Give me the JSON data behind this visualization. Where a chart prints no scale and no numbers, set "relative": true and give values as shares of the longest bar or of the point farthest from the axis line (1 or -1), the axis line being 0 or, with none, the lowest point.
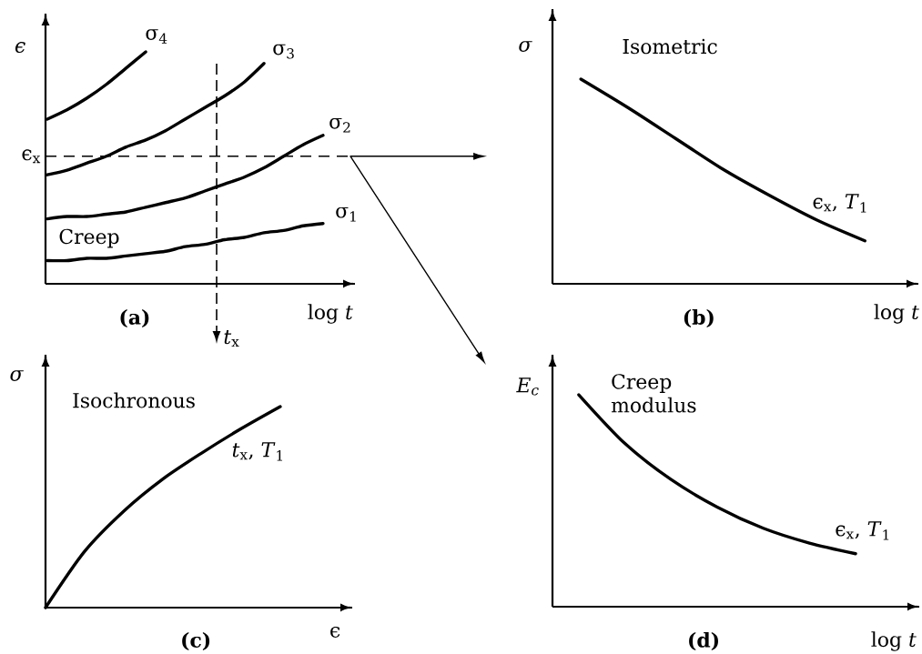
{
  "chart_data": [
    {
      "type": "line",
      "title": "(a)",
      "xlabel": "log *t*",
      "ylabel": "ϵ",
      "relative": true,
      "marker": "none",
      "line_style": "solid",
      "categories": [
        null,
        null,
        null,
        null,
        null,
        null,
        null,
        null,
        null,
        null,
        null,
        null,
        null,
        null,
        null
      ],
      "series": [
        {
          "name": "σ$_{4}$",
          "color": "#000000",
          "values": [
            0.71,
            0.75,
            0.8,
            0.86,
            0.93,
            1,
            null,
            null,
            null,
            null,
            null,
            null,
            null,
            null,
            null
          ]
        },
        {
          "name": "σ$_{3}$",
          "color": "#000000",
          "values": [
            0.47,
            0.49,
            0.52,
            0.55,
            0.59,
            0.62,
            0.66,
            0.71,
            0.76,
            0.81,
            0.87,
            0.95,
            null,
            null,
            null
          ]
        },
        {
          "name": "σ$_{2}$",
          "color": "#000000",
          "values": [
            0.28,
            0.29,
            0.29,
            0.3,
            0.31,
            0.33,
            0.35,
            0.37,
            0.4,
            0.43,
            0.46,
            0.5,
            0.55,
            0.6,
            0.64
          ]
        },
        {
          "name": "σ$_{1}$",
          "color": "#000000",
          "values": [
            0.1,
            0.1,
            0.11,
            0.11,
            0.12,
            0.13,
            0.14,
            0.16,
            0.17,
            0.19,
            0.2,
            0.22,
            0.23,
            0.25,
            0.26
          ]
        }
      ],
      "annotations": [
        "Creep",
        "*t*$_{x}$"
      ],
      "ref_lines": [
        {
          "axis": "y",
          "value": 0.55,
          "label": "ϵ$_{x}$",
          "line_style": "dashed"
        }
      ]
    },
    {
      "type": "line",
      "title": "(b)",
      "xlabel": "log *t*",
      "ylabel": "σ",
      "relative": true,
      "marker": "none",
      "line_style": "solid",
      "categories": [
        null,
        null,
        null,
        null,
        null,
        null,
        null
      ],
      "series": [
        {
          "name": "ϵ$_{x}$, *T*$_{1}$",
          "color": "#000000",
          "values": [
            1,
            0.86,
            0.71,
            0.56,
            0.43,
            0.31,
            0.21
          ]
        }
      ],
      "annotations": [
        "Isometric"
      ]
    },
    {
      "type": "line",
      "title": "(c)",
      "xlabel": "ϵ",
      "ylabel": "σ",
      "relative": true,
      "marker": "none",
      "line_style": "solid",
      "categories": [
        null,
        null,
        null,
        null,
        null,
        null,
        null
      ],
      "series": [
        {
          "name": "*t*$_{x}$, *T*$_{1}$",
          "color": "#000000",
          "values": [
            0,
            0.28,
            0.48,
            0.64,
            0.77,
            0.89,
            1
          ]
        }
      ],
      "annotations": [
        "Isochronous"
      ]
    },
    {
      "type": "line",
      "title": "(d)",
      "xlabel": "log *t*",
      "ylabel": "E$_{c}$",
      "relative": true,
      "marker": "none",
      "line_style": "solid",
      "categories": [
        null,
        null,
        null,
        null,
        null,
        null,
        null
      ],
      "series": [
        {
          "name": "ϵ$_{x}$, *T*$_{1}$",
          "color": "#000000",
          "values": [
            1,
            0.77,
            0.6,
            0.47,
            0.37,
            0.3,
            0.25
          ]
        }
      ],
      "annotations": [
        "Creep modulus"
      ]
    }
  ]
}
